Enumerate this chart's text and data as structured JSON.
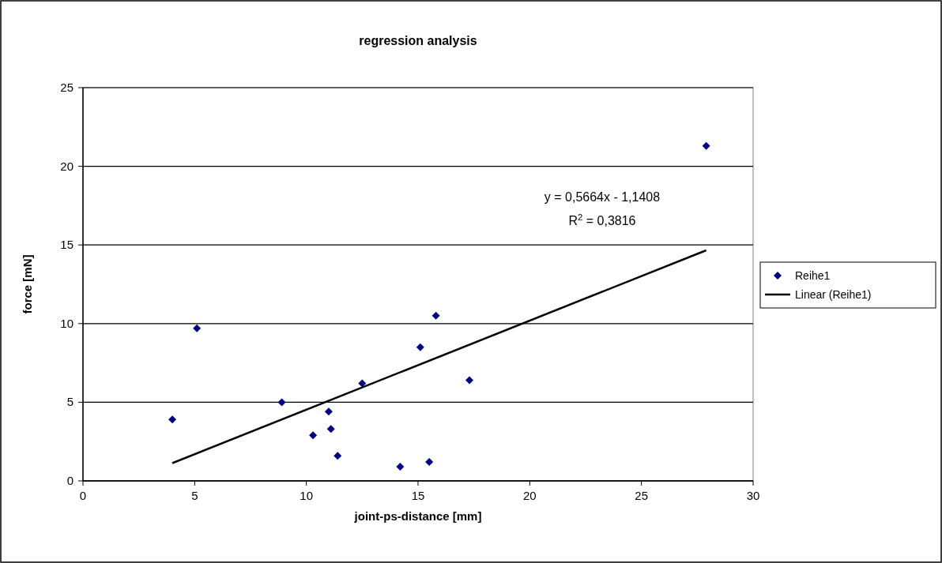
{
  "chart_data": {
    "type": "scatter",
    "title": "regression analysis",
    "xlabel": "joint-ps-distance [mm]",
    "ylabel": "force [mN]",
    "xlim": [
      0,
      30
    ],
    "xticks": [
      0,
      5,
      10,
      15,
      20,
      25,
      30
    ],
    "ylim": [
      0,
      25
    ],
    "yticks": [
      0,
      5,
      10,
      15,
      20,
      25
    ],
    "grid": "y",
    "legend": "right",
    "annotations": [
      "y = 0,5664x - 1,1408",
      "R$^{2}$ = 0,3816"
    ],
    "series": [
      {
        "name": "Reihe1",
        "marker": "diamond",
        "color": "#000080",
        "x": [
          4.0,
          5.1,
          8.9,
          10.3,
          11.0,
          11.1,
          11.4,
          12.5,
          14.2,
          15.1,
          15.5,
          15.8,
          17.3,
          27.9
        ],
        "values": [
          3.9,
          9.7,
          5.0,
          2.9,
          4.4,
          3.3,
          1.6,
          6.2,
          0.9,
          8.5,
          1.2,
          10.5,
          6.4,
          21.3
        ]
      },
      {
        "name": "Linear (Reihe1)",
        "type": "line",
        "marker": "none",
        "color": "#000000",
        "line_style": "solid",
        "x": [
          4.0,
          27.9
        ],
        "values": [
          1.13,
          14.66
        ]
      }
    ]
  }
}
